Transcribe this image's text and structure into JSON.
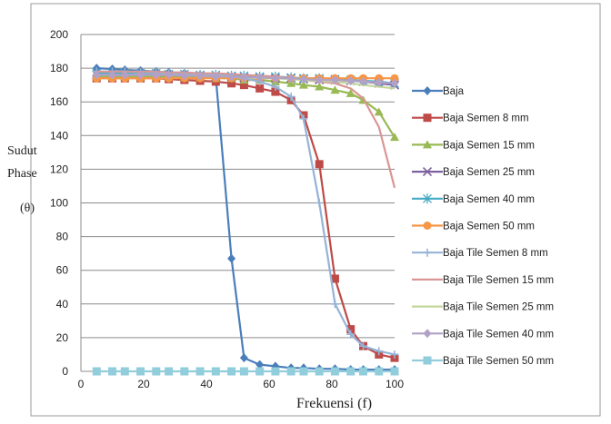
{
  "chart_data": {
    "type": "line",
    "title": "",
    "ylabel_lines": [
      "Sudut",
      "Phase",
      "(θ)"
    ],
    "xlabel": "Frekuensi (f)",
    "xlim": [
      0,
      100
    ],
    "ylim": [
      0,
      200
    ],
    "x_ticks": [
      0,
      20,
      40,
      60,
      80,
      100
    ],
    "y_ticks": [
      0,
      20,
      40,
      60,
      80,
      100,
      120,
      140,
      160,
      180,
      200
    ],
    "grid": "horizontal",
    "legend_position": "right",
    "x": [
      5,
      10,
      14,
      19,
      24,
      28,
      33,
      38,
      43,
      48,
      52,
      57,
      62,
      67,
      71,
      76,
      81,
      86,
      90,
      95,
      100
    ],
    "series": [
      {
        "name": "Baja",
        "color": "#4a7ebb",
        "marker": "diamond",
        "values": [
          180,
          179.5,
          179,
          178.5,
          178,
          177.5,
          177,
          176,
          175,
          67,
          8,
          4,
          3,
          2,
          2,
          1.5,
          1.5,
          1,
          1,
          1,
          1
        ]
      },
      {
        "name": "Baja Semen 8 mm",
        "color": "#be4b48",
        "marker": "square",
        "values": [
          174,
          174,
          174,
          174,
          174,
          173.5,
          173,
          172.5,
          172,
          171,
          170,
          168,
          166,
          161,
          152,
          123,
          55,
          25,
          15,
          10,
          8
        ]
      },
      {
        "name": "Baja Semen 15 mm",
        "color": "#98b954",
        "marker": "triangle",
        "values": [
          175,
          175,
          175,
          175,
          175,
          175,
          174.5,
          174.5,
          174,
          174,
          173,
          173,
          172,
          171,
          170,
          169,
          167,
          165,
          161,
          154,
          139
        ]
      },
      {
        "name": "Baja Semen 25 mm",
        "color": "#7d60a0",
        "marker": "x",
        "values": [
          176,
          176,
          176,
          176,
          176,
          176,
          175.5,
          175.5,
          175,
          175,
          174.5,
          174.5,
          174,
          174,
          173.5,
          173,
          173,
          172.5,
          172,
          171,
          170
        ]
      },
      {
        "name": "Baja Semen 40 mm",
        "color": "#46aac5",
        "marker": "star",
        "values": [
          177,
          177,
          177,
          177,
          177,
          176.5,
          176.5,
          176,
          176,
          175.5,
          175.5,
          175,
          175,
          174.5,
          174,
          174,
          173.5,
          173,
          172.5,
          172,
          171
        ]
      },
      {
        "name": "Baja Semen 50 mm",
        "color": "#f79646",
        "marker": "circle",
        "values": [
          174,
          174,
          174,
          174,
          174,
          174,
          174,
          174,
          174,
          174,
          174,
          174,
          174,
          174,
          174,
          174,
          174,
          174,
          174,
          174,
          174
        ]
      },
      {
        "name": "Baja Tile Semen 8 mm",
        "color": "#95b3d7",
        "marker": "plus",
        "values": [
          178,
          178,
          178,
          177.5,
          177.5,
          177,
          177,
          176.5,
          176,
          175,
          174,
          172,
          169,
          163,
          150,
          100,
          40,
          22,
          15,
          12,
          10
        ]
      },
      {
        "name": "Baja Tile Semen 15 mm",
        "color": "#d99694",
        "marker": "none",
        "values": [
          178,
          178,
          178,
          178,
          178,
          177.5,
          177.5,
          177,
          177,
          176.5,
          176,
          175.5,
          175,
          174,
          173,
          172,
          171,
          168,
          162,
          145,
          109
        ]
      },
      {
        "name": "Baja Tile Semen 25 mm",
        "color": "#c3d69b",
        "marker": "none",
        "values": [
          176,
          176,
          176,
          176,
          176,
          176,
          175.5,
          175.5,
          175,
          175,
          174.5,
          174,
          174,
          173.5,
          173,
          172.5,
          172,
          171,
          170,
          169,
          168
        ]
      },
      {
        "name": "Baja Tile Semen 40 mm",
        "color": "#b2a1c7",
        "marker": "diamond",
        "values": [
          176,
          176,
          176,
          176,
          176,
          176,
          175.5,
          175.5,
          175,
          175,
          174.5,
          174.5,
          174,
          174,
          173.5,
          173,
          173,
          172.5,
          172,
          171.5,
          171
        ]
      },
      {
        "name": "Baja Tile Semen 50 mm",
        "color": "#92cddc",
        "marker": "square",
        "values": [
          0,
          0,
          0,
          0,
          0,
          0,
          0,
          0,
          0,
          0,
          0,
          0,
          0,
          0,
          0,
          0,
          0,
          0,
          0,
          0,
          0
        ]
      }
    ]
  }
}
